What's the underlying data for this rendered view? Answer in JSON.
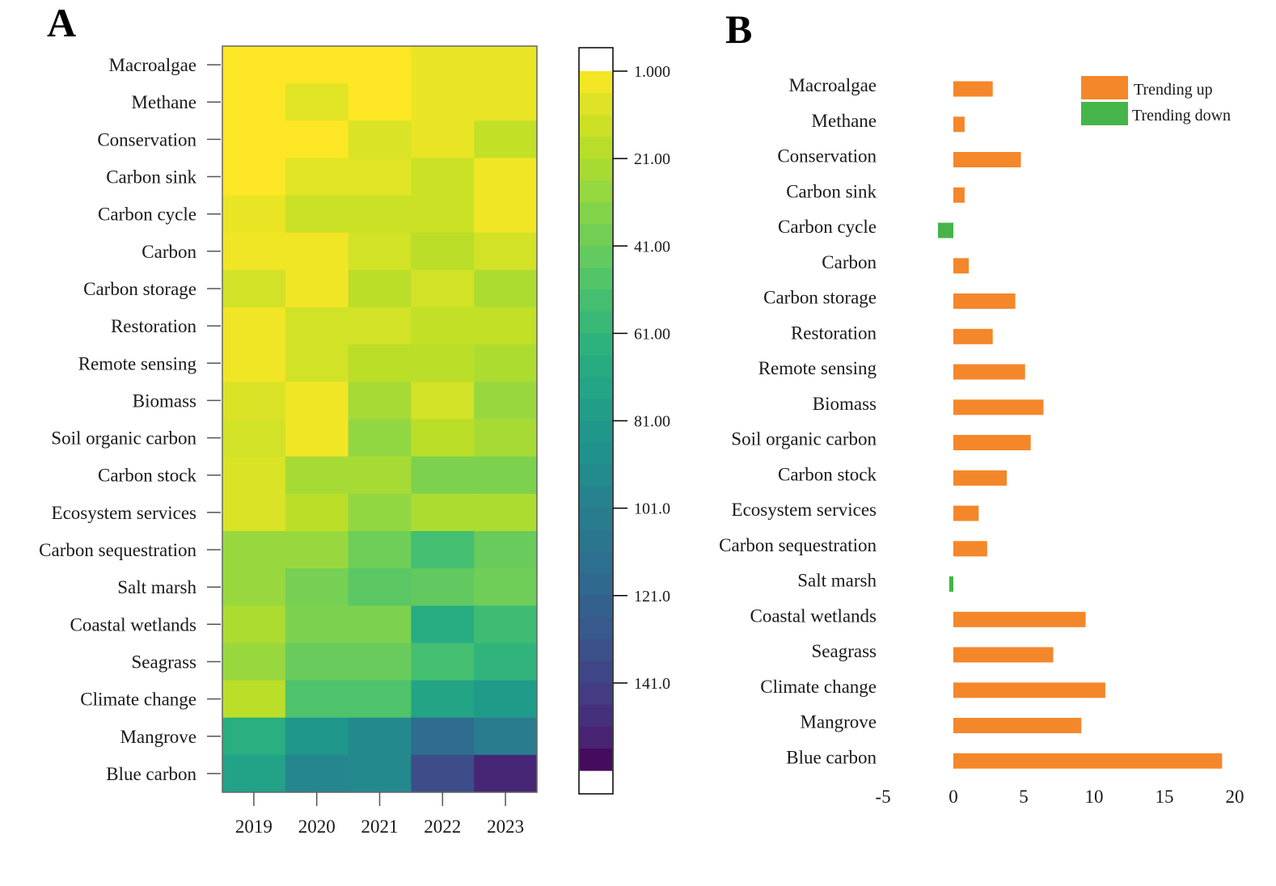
{
  "panels": {
    "a_label": "A",
    "b_label": "B"
  },
  "colors": {
    "up": "#f4872a",
    "down": "#45b549",
    "frame": "#666666"
  },
  "chart_data": [
    {
      "type": "heatmap",
      "title": "A",
      "categories": [
        "Macroalgae",
        "Methane",
        "Conservation",
        "Carbon sink",
        "Carbon cycle",
        "Carbon",
        "Carbon storage",
        "Restoration",
        "Remote sensing",
        "Biomass",
        "Soil organic carbon",
        "Carbon stock",
        "Ecosystem services",
        "Carbon sequestration",
        "Salt marsh",
        "Coastal wetlands",
        "Seagrass",
        "Climate change",
        "Mangrove",
        "Blue carbon"
      ],
      "years": [
        "2019",
        "2020",
        "2021",
        "2022",
        "2023"
      ],
      "values": [
        [
          1,
          1,
          1,
          6,
          6
        ],
        [
          1,
          8,
          1,
          6,
          6
        ],
        [
          1,
          1,
          10,
          6,
          16
        ],
        [
          1,
          8,
          8,
          14,
          4
        ],
        [
          6,
          14,
          14,
          14,
          4
        ],
        [
          4,
          4,
          12,
          18,
          12
        ],
        [
          12,
          4,
          18,
          12,
          22
        ],
        [
          4,
          12,
          12,
          16,
          16
        ],
        [
          4,
          12,
          18,
          18,
          22
        ],
        [
          10,
          4,
          24,
          12,
          28
        ],
        [
          12,
          4,
          30,
          18,
          24
        ],
        [
          10,
          24,
          24,
          36,
          36
        ],
        [
          10,
          18,
          30,
          22,
          22
        ],
        [
          28,
          28,
          40,
          54,
          42
        ],
        [
          28,
          38,
          46,
          44,
          40
        ],
        [
          22,
          36,
          36,
          68,
          56
        ],
        [
          28,
          42,
          42,
          54,
          62
        ],
        [
          18,
          50,
          50,
          74,
          80
        ],
        [
          66,
          84,
          94,
          116,
          104
        ],
        [
          76,
          96,
          94,
          135,
          152
        ]
      ],
      "colorbar": {
        "min": 1,
        "max": 161,
        "ticks": [
          "1.000",
          "21.00",
          "41.00",
          "61.00",
          "81.00",
          "101.0",
          "121.0",
          "141.0"
        ],
        "tick_values": [
          1,
          21,
          41,
          61,
          81,
          101,
          121,
          141
        ]
      }
    },
    {
      "type": "bar",
      "orientation": "horizontal",
      "title": "B",
      "categories": [
        "Macroalgae",
        "Methane",
        "Conservation",
        "Carbon sink",
        "Carbon cycle",
        "Carbon",
        "Carbon storage",
        "Restoration",
        "Remote sensing",
        "Biomass",
        "Soil organic carbon",
        "Carbon stock",
        "Ecosystem services",
        "Carbon sequestration",
        "Salt marsh",
        "Coastal wetlands",
        "Seagrass",
        "Climate change",
        "Mangrove",
        "Blue carbon"
      ],
      "values": [
        2.8,
        0.8,
        4.8,
        0.8,
        -1.1,
        1.1,
        4.4,
        2.8,
        5.1,
        6.4,
        5.5,
        3.8,
        1.8,
        2.4,
        -0.3,
        9.4,
        7.1,
        10.8,
        9.1,
        19.1
      ],
      "xlim": [
        -5,
        20
      ],
      "xticks": [
        "-5",
        "0",
        "5",
        "10",
        "15",
        "20"
      ],
      "xtick_values": [
        -5,
        0,
        5,
        10,
        15,
        20
      ],
      "legend": [
        {
          "label": "Trending up",
          "key": "up"
        },
        {
          "label": "Trending down",
          "key": "down"
        }
      ],
      "legend_position": "top-right"
    }
  ]
}
